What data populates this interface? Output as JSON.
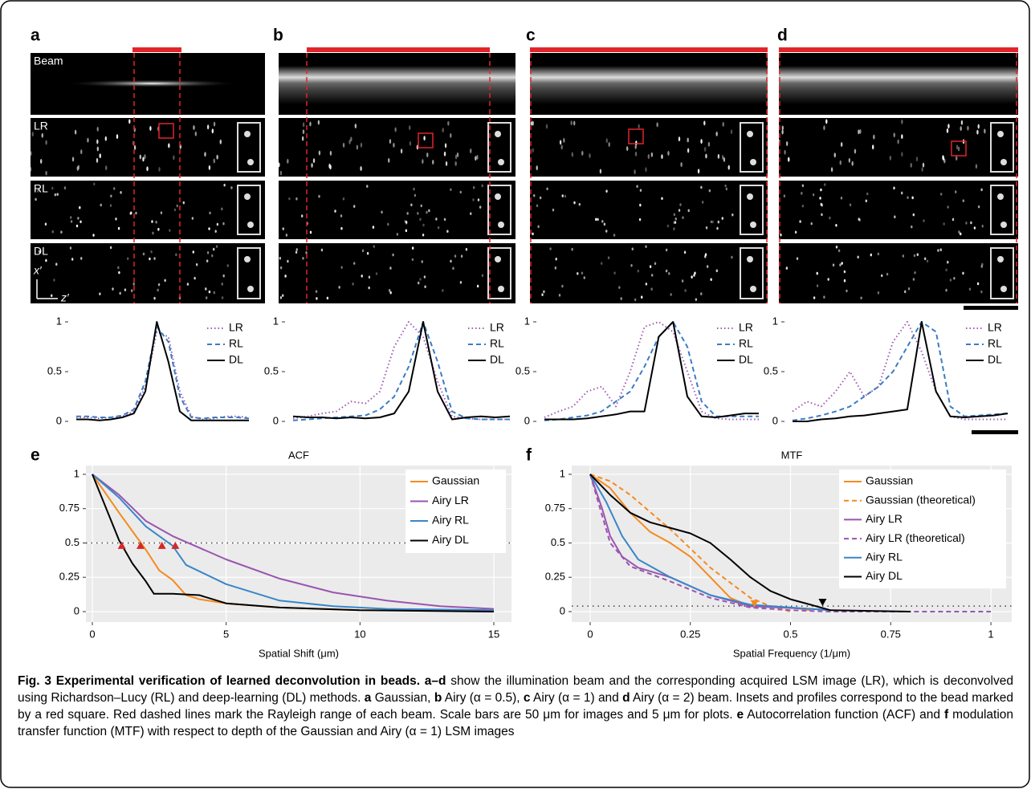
{
  "panel_labels": [
    "a",
    "b",
    "c",
    "d",
    "e",
    "f"
  ],
  "image_rows": [
    "Beam",
    "LR",
    "RL",
    "DL"
  ],
  "image_axes": {
    "x": "z′",
    "y": "x′"
  },
  "chart_data": [
    {
      "type": "line",
      "style": "profile",
      "x": [
        0,
        1,
        2,
        3,
        4,
        5,
        6,
        7,
        8,
        9,
        10,
        11,
        12,
        13,
        14,
        15
      ],
      "xlim": [
        0,
        15
      ],
      "ylim": [
        0,
        1
      ],
      "yticks": [
        0,
        0.5,
        1
      ],
      "series": [
        {
          "name": "LR",
          "color": "#a05ab4",
          "dash": "dotted",
          "values": [
            0.04,
            0.04,
            0.03,
            0.04,
            0.05,
            0.1,
            0.35,
            0.9,
            0.85,
            0.3,
            0.05,
            0.02,
            0.03,
            0.05,
            0.05,
            0.04
          ]
        },
        {
          "name": "RL",
          "color": "#3a7dc4",
          "dash": "dashed",
          "values": [
            0.05,
            0.05,
            0.04,
            0.04,
            0.06,
            0.12,
            0.4,
            0.95,
            0.8,
            0.25,
            0.04,
            0.03,
            0.04,
            0.04,
            0.04,
            0.03
          ]
        },
        {
          "name": "DL",
          "color": "#000000",
          "dash": "solid",
          "values": [
            0.02,
            0.02,
            0.01,
            0.02,
            0.04,
            0.08,
            0.3,
            1,
            0.6,
            0.1,
            0.01,
            0.01,
            0.01,
            0.01,
            0.01,
            0.01
          ]
        }
      ]
    },
    {
      "type": "line",
      "style": "profile",
      "x": [
        0,
        1,
        2,
        3,
        4,
        5,
        6,
        7,
        8,
        9,
        10,
        11,
        12,
        13,
        14,
        15
      ],
      "xlim": [
        0,
        15
      ],
      "ylim": [
        0,
        1
      ],
      "yticks": [
        0,
        0.5,
        1
      ],
      "series": [
        {
          "name": "LR",
          "color": "#a05ab4",
          "dash": "dotted",
          "values": [
            0.03,
            0.05,
            0.08,
            0.1,
            0.2,
            0.18,
            0.3,
            0.75,
            1,
            0.85,
            0.4,
            0.05,
            0.03,
            0.02,
            0.02,
            0.02
          ]
        },
        {
          "name": "RL",
          "color": "#3a7dc4",
          "dash": "dashed",
          "values": [
            0.01,
            0.02,
            0.03,
            0.04,
            0.05,
            0.06,
            0.12,
            0.25,
            0.55,
            1,
            0.6,
            0.1,
            0.03,
            0.02,
            0.02,
            0.02
          ]
        },
        {
          "name": "DL",
          "color": "#000000",
          "dash": "solid",
          "values": [
            0.05,
            0.04,
            0.04,
            0.03,
            0.04,
            0.03,
            0.04,
            0.08,
            0.3,
            1,
            0.3,
            0.02,
            0.04,
            0.05,
            0.04,
            0.05
          ]
        }
      ]
    },
    {
      "type": "line",
      "style": "profile",
      "x": [
        0,
        1,
        2,
        3,
        4,
        5,
        6,
        7,
        8,
        9,
        10,
        11,
        12,
        13,
        14,
        15
      ],
      "xlim": [
        0,
        15
      ],
      "ylim": [
        0,
        1
      ],
      "yticks": [
        0,
        0.5,
        1
      ],
      "series": [
        {
          "name": "LR",
          "color": "#a05ab4",
          "dash": "dotted",
          "values": [
            0.04,
            0.1,
            0.15,
            0.3,
            0.35,
            0.15,
            0.5,
            0.95,
            1,
            0.9,
            0.5,
            0.1,
            0.03,
            0.02,
            0.02,
            0.02
          ]
        },
        {
          "name": "RL",
          "color": "#3a7dc4",
          "dash": "dashed",
          "values": [
            0.01,
            0.02,
            0.04,
            0.06,
            0.1,
            0.2,
            0.3,
            0.55,
            0.85,
            1,
            0.75,
            0.2,
            0.05,
            0.05,
            0.05,
            0.05
          ]
        },
        {
          "name": "DL",
          "color": "#000000",
          "dash": "solid",
          "values": [
            0.02,
            0.02,
            0.02,
            0.03,
            0.05,
            0.07,
            0.1,
            0.1,
            0.85,
            1,
            0.25,
            0.05,
            0.04,
            0.06,
            0.08,
            0.08
          ]
        }
      ]
    },
    {
      "type": "line",
      "style": "profile",
      "x": [
        0,
        1,
        2,
        3,
        4,
        5,
        6,
        7,
        8,
        9,
        10,
        11,
        12,
        13,
        14,
        15
      ],
      "xlim": [
        0,
        15
      ],
      "ylim": [
        0,
        1
      ],
      "yticks": [
        0,
        0.5,
        1
      ],
      "series": [
        {
          "name": "LR",
          "color": "#a05ab4",
          "dash": "dotted",
          "values": [
            0.1,
            0.2,
            0.15,
            0.3,
            0.5,
            0.25,
            0.35,
            0.8,
            1,
            0.7,
            0.3,
            0.05,
            0.02,
            0.02,
            0.02,
            0.02
          ]
        },
        {
          "name": "RL",
          "color": "#3a7dc4",
          "dash": "dashed",
          "values": [
            0.01,
            0.03,
            0.06,
            0.1,
            0.15,
            0.25,
            0.35,
            0.5,
            0.75,
            1,
            0.9,
            0.15,
            0.05,
            0.06,
            0.07,
            0.08
          ]
        },
        {
          "name": "DL",
          "color": "#000000",
          "dash": "solid",
          "values": [
            0,
            0,
            0.02,
            0.03,
            0.05,
            0.06,
            0.08,
            0.1,
            0.12,
            1,
            0.3,
            0.05,
            0.04,
            0.05,
            0.06,
            0.08
          ]
        }
      ]
    },
    {
      "type": "line",
      "style": "panel",
      "title": "ACF",
      "xlabel": "Spatial Shift (μm)",
      "background": "#ebebeb",
      "grid": true,
      "xlim": [
        -0.24,
        15.66
      ],
      "ylim": [
        -0.076,
        1.064
      ],
      "xticks": [
        0,
        5,
        10,
        15
      ],
      "yticks": [
        0,
        0.25,
        0.5,
        0.75,
        1
      ],
      "hline": 0.5,
      "series": [
        {
          "name": "Gaussian",
          "color": "#f58a1f",
          "dash": "solid",
          "x": [
            0,
            1,
            2,
            2.5,
            3,
            3.5,
            4,
            5,
            7,
            10,
            15
          ],
          "values": [
            1,
            0.72,
            0.45,
            0.3,
            0.23,
            0.12,
            0.09,
            0.06,
            0.03,
            0.01,
            0.01
          ]
        },
        {
          "name": "Airy LR",
          "color": "#9a55b0",
          "dash": "solid",
          "x": [
            0,
            1,
            2,
            3,
            5,
            7,
            9,
            11,
            13,
            15
          ],
          "values": [
            1,
            0.85,
            0.66,
            0.55,
            0.38,
            0.24,
            0.14,
            0.08,
            0.04,
            0.02
          ]
        },
        {
          "name": "Airy RL",
          "color": "#3a86c8",
          "dash": "solid",
          "x": [
            0,
            1,
            2,
            3,
            3.5,
            5,
            7,
            9,
            11,
            15
          ],
          "values": [
            1,
            0.83,
            0.62,
            0.48,
            0.34,
            0.2,
            0.08,
            0.04,
            0.02,
            0.01
          ]
        },
        {
          "name": "Airy DL",
          "color": "#000000",
          "dash": "solid",
          "x": [
            0,
            1,
            1.5,
            2,
            2.3,
            3,
            4,
            5,
            7,
            10,
            15
          ],
          "values": [
            1,
            0.52,
            0.35,
            0.22,
            0.13,
            0.13,
            0.12,
            0.06,
            0.03,
            0.01,
            0
          ]
        }
      ],
      "markers": [
        {
          "x": 1.1,
          "y": 0.48,
          "color": "#d62728",
          "direction": "up"
        },
        {
          "x": 1.8,
          "y": 0.48,
          "color": "#d62728",
          "direction": "up"
        },
        {
          "x": 2.6,
          "y": 0.48,
          "color": "#d62728",
          "direction": "up"
        },
        {
          "x": 3.1,
          "y": 0.48,
          "color": "#d62728",
          "direction": "up"
        }
      ]
    },
    {
      "type": "line",
      "style": "panel",
      "title": "MTF",
      "xlabel": "Spatial Frequency (1/μm)",
      "background": "#ebebeb",
      "grid": true,
      "xlim": [
        -0.046,
        1.052
      ],
      "ylim": [
        -0.076,
        1.064
      ],
      "xticks": [
        0,
        0.25,
        0.5,
        0.75,
        1
      ],
      "yticks": [
        0,
        0.25,
        0.5,
        0.75,
        1
      ],
      "hline": 0.04,
      "series": [
        {
          "name": "Gaussian",
          "color": "#f58a1f",
          "dash": "solid",
          "x": [
            0,
            0.05,
            0.1,
            0.15,
            0.2,
            0.25,
            0.3,
            0.35,
            0.4,
            0.5,
            0.55
          ],
          "values": [
            1,
            0.9,
            0.72,
            0.58,
            0.5,
            0.4,
            0.25,
            0.1,
            0.04,
            0.03,
            0.01
          ]
        },
        {
          "name": "Gaussian (theoretical)",
          "color": "#f58a1f",
          "dash": "dashed",
          "x": [
            0,
            0.05,
            0.1,
            0.2,
            0.3,
            0.4,
            0.45,
            0.5
          ],
          "values": [
            1,
            0.95,
            0.85,
            0.6,
            0.32,
            0.1,
            0.04,
            0
          ]
        },
        {
          "name": "Airy LR",
          "color": "#9a55b0",
          "dash": "solid",
          "x": [
            0,
            0.03,
            0.05,
            0.08,
            0.12,
            0.2,
            0.3,
            0.4,
            0.55,
            0.6
          ],
          "values": [
            1,
            0.75,
            0.55,
            0.4,
            0.32,
            0.25,
            0.12,
            0.04,
            0.02,
            0.01
          ]
        },
        {
          "name": "Airy LR (theoretical)",
          "color": "#9a55b0",
          "dash": "dashed",
          "x": [
            0,
            0.03,
            0.05,
            0.1,
            0.2,
            0.3,
            0.4,
            0.5,
            0.6,
            1
          ],
          "values": [
            1,
            0.7,
            0.5,
            0.33,
            0.22,
            0.1,
            0.03,
            0.01,
            0,
            0
          ]
        },
        {
          "name": "Airy RL",
          "color": "#3a86c8",
          "dash": "solid",
          "x": [
            0,
            0.04,
            0.08,
            0.12,
            0.2,
            0.3,
            0.4,
            0.6
          ],
          "values": [
            1,
            0.8,
            0.55,
            0.38,
            0.25,
            0.12,
            0.05,
            0.01
          ]
        },
        {
          "name": "Airy DL",
          "color": "#000000",
          "dash": "solid",
          "x": [
            0,
            0.05,
            0.1,
            0.15,
            0.25,
            0.3,
            0.35,
            0.4,
            0.45,
            0.5,
            0.55,
            0.6,
            0.8
          ],
          "values": [
            1,
            0.85,
            0.72,
            0.65,
            0.57,
            0.5,
            0.38,
            0.25,
            0.15,
            0.09,
            0.05,
            0.01,
            0
          ]
        }
      ],
      "markers": [
        {
          "x": 0.41,
          "y": 0.06,
          "color": "#f58a1f",
          "direction": "down"
        },
        {
          "x": 0.58,
          "y": 0.07,
          "color": "#000000",
          "direction": "down"
        }
      ]
    }
  ],
  "caption": [
    {
      "text": "Fig. 3 Experimental verification of learned deconvolution in beads.",
      "bold": true
    },
    {
      "text": " a–d",
      "bold": true
    },
    {
      "text": " show the illumination beam and the corresponding acquired LSM image (LR), which is deconvolved using Richardson–Lucy (RL) and deep-learning (DL) methods. ",
      "bold": false
    },
    {
      "text": "a",
      "bold": true
    },
    {
      "text": " Gaussian, ",
      "bold": false
    },
    {
      "text": "b",
      "bold": true
    },
    {
      "text": " Airy (α = 0.5), ",
      "bold": false
    },
    {
      "text": "c",
      "bold": true
    },
    {
      "text": " Airy (α = 1) and ",
      "bold": false
    },
    {
      "text": "d",
      "bold": true
    },
    {
      "text": " Airy (α = 2) beam. Insets and profiles correspond to the bead marked by a red square. Red dashed lines mark the Rayleigh range of each beam. Scale bars are 50 μm for images and 5 μm for plots. ",
      "bold": false
    },
    {
      "text": "e",
      "bold": true
    },
    {
      "text": " Autocorrelation function (ACF) and ",
      "bold": false
    },
    {
      "text": "f",
      "bold": true
    },
    {
      "text": " modulation transfer function (MTF) with respect to depth of the Gaussian and Airy (α = 1) LSM images",
      "bold": false
    }
  ]
}
